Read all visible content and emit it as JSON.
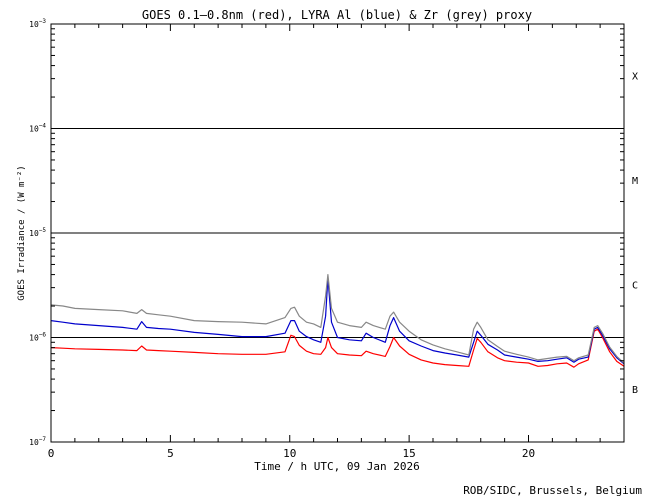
{
  "chart_data": {
    "type": "line",
    "title": "GOES 0.1—0.8nm (red), LYRA Al (blue) & Zr (grey) proxy",
    "xlabel": "Time / h UTC, 09 Jan 2026",
    "ylabel": "GOES Irradiance / (W m⁻²)",
    "xlim": [
      0,
      24
    ],
    "ylim": [
      1e-07,
      0.001
    ],
    "yscale": "log",
    "x_ticks": [
      0,
      5,
      10,
      15,
      20
    ],
    "y_ticks": [
      {
        "value": 1e-07,
        "base": "10",
        "exp": "−7"
      },
      {
        "value": 1e-06,
        "base": "10",
        "exp": "−6"
      },
      {
        "value": 1e-05,
        "base": "10",
        "exp": "−5"
      },
      {
        "value": 0.0001,
        "base": "10",
        "exp": "−4"
      },
      {
        "value": 0.001,
        "base": "10",
        "exp": "−3"
      }
    ],
    "flare_class_lines": [
      1e-06,
      1e-05,
      0.0001
    ],
    "flare_classes": [
      {
        "label": "X",
        "value": 0.00032
      },
      {
        "label": "M",
        "value": 3.2e-05
      },
      {
        "label": "C",
        "value": 3.2e-06
      },
      {
        "label": "B",
        "value": 3.2e-07
      }
    ],
    "footer": "ROB/SIDC, Brussels, Belgium",
    "series": [
      {
        "color": "#ff0000",
        "x": [
          0.0,
          0.5,
          1.0,
          2.0,
          3.0,
          3.6,
          3.8,
          4.0,
          4.5,
          5.0,
          6.0,
          7.0,
          8.0,
          9.0,
          9.8,
          10.05,
          10.2,
          10.4,
          10.7,
          11.0,
          11.3,
          11.5,
          11.6,
          11.75,
          12.0,
          12.5,
          13.0,
          13.2,
          13.5,
          14.0,
          14.2,
          14.35,
          14.6,
          15.0,
          15.5,
          16.0,
          16.5,
          17.0,
          17.5,
          17.7,
          17.85,
          18.0,
          18.3,
          18.7,
          19.0,
          19.5,
          20.0,
          20.4,
          20.8,
          21.2,
          21.6,
          21.9,
          22.1,
          22.5,
          22.75,
          22.9,
          23.1,
          23.4,
          23.7,
          24.0
        ],
        "y": [
          8e-07,
          7.9e-07,
          7.8e-07,
          7.7e-07,
          7.6e-07,
          7.5e-07,
          8.3e-07,
          7.6e-07,
          7.5e-07,
          7.4e-07,
          7.2e-07,
          7e-07,
          6.9e-07,
          6.9e-07,
          7.3e-07,
          1.05e-06,
          1.02e-06,
          8.4e-07,
          7.4e-07,
          7e-07,
          6.9e-07,
          8e-07,
          1e-06,
          8e-07,
          7e-07,
          6.8e-07,
          6.7e-07,
          7.4e-07,
          7e-07,
          6.6e-07,
          8.2e-07,
          1e-06,
          8.3e-07,
          6.9e-07,
          6.1e-07,
          5.7e-07,
          5.5e-07,
          5.4e-07,
          5.3e-07,
          7.6e-07,
          9.8e-07,
          9e-07,
          7.3e-07,
          6.4e-07,
          6e-07,
          5.8e-07,
          5.7e-07,
          5.3e-07,
          5.4e-07,
          5.6e-07,
          5.7e-07,
          5.2e-07,
          5.6e-07,
          6.1e-07,
          1.15e-06,
          1.2e-06,
          1e-06,
          7.3e-07,
          5.9e-07,
          5.3e-07
        ]
      },
      {
        "color": "#0000cc",
        "x": [
          0.0,
          0.5,
          1.0,
          2.0,
          3.0,
          3.6,
          3.8,
          4.0,
          4.5,
          5.0,
          6.0,
          7.0,
          8.0,
          9.0,
          9.8,
          10.05,
          10.2,
          10.4,
          10.7,
          11.0,
          11.3,
          11.5,
          11.6,
          11.75,
          12.0,
          12.5,
          13.0,
          13.2,
          13.5,
          14.0,
          14.2,
          14.35,
          14.6,
          15.0,
          15.5,
          16.0,
          16.5,
          17.0,
          17.5,
          17.7,
          17.85,
          18.0,
          18.3,
          18.7,
          19.0,
          19.5,
          20.0,
          20.4,
          20.8,
          21.2,
          21.6,
          21.9,
          22.1,
          22.5,
          22.75,
          22.9,
          23.1,
          23.4,
          23.7,
          24.0
        ],
        "y": [
          1.45e-06,
          1.4e-06,
          1.35e-06,
          1.3e-06,
          1.25e-06,
          1.2e-06,
          1.42e-06,
          1.25e-06,
          1.22e-06,
          1.2e-06,
          1.12e-06,
          1.07e-06,
          1.02e-06,
          1.02e-06,
          1.1e-06,
          1.45e-06,
          1.45e-06,
          1.15e-06,
          1.02e-06,
          9.5e-07,
          9e-07,
          1.6e-06,
          3.7e-06,
          1.4e-06,
          1e-06,
          9.5e-07,
          9.3e-07,
          1.1e-06,
          1e-06,
          9e-07,
          1.3e-06,
          1.55e-06,
          1.15e-06,
          9.3e-07,
          8.3e-07,
          7.5e-07,
          7.1e-07,
          6.8e-07,
          6.5e-07,
          9e-07,
          1.15e-06,
          1.05e-06,
          8.6e-07,
          7.6e-07,
          6.8e-07,
          6.5e-07,
          6.2e-07,
          5.9e-07,
          6e-07,
          6.2e-07,
          6.4e-07,
          5.8e-07,
          6.2e-07,
          6.5e-07,
          1.2e-06,
          1.25e-06,
          1.05e-06,
          7.8e-07,
          6.4e-07,
          5.6e-07
        ]
      },
      {
        "color": "#888888",
        "x": [
          0.0,
          0.5,
          1.0,
          2.0,
          3.0,
          3.6,
          3.8,
          4.0,
          4.5,
          5.0,
          6.0,
          7.0,
          8.0,
          9.0,
          9.8,
          10.05,
          10.2,
          10.4,
          10.7,
          11.0,
          11.3,
          11.5,
          11.6,
          11.75,
          12.0,
          12.5,
          13.0,
          13.2,
          13.5,
          14.0,
          14.2,
          14.35,
          14.6,
          15.0,
          15.5,
          16.0,
          16.5,
          17.0,
          17.5,
          17.7,
          17.85,
          18.0,
          18.3,
          18.7,
          19.0,
          19.5,
          20.0,
          20.4,
          20.8,
          21.2,
          21.6,
          21.9,
          22.1,
          22.5,
          22.75,
          22.9,
          23.1,
          23.4,
          23.7,
          24.0
        ],
        "y": [
          2.05e-06,
          2e-06,
          1.9e-06,
          1.85e-06,
          1.8e-06,
          1.7e-06,
          1.85e-06,
          1.7e-06,
          1.65e-06,
          1.6e-06,
          1.45e-06,
          1.42e-06,
          1.4e-06,
          1.35e-06,
          1.55e-06,
          1.9e-06,
          1.95e-06,
          1.6e-06,
          1.4e-06,
          1.35e-06,
          1.25e-06,
          2.5e-06,
          4e-06,
          1.9e-06,
          1.4e-06,
          1.3e-06,
          1.25e-06,
          1.4e-06,
          1.3e-06,
          1.2e-06,
          1.6e-06,
          1.75e-06,
          1.4e-06,
          1.15e-06,
          9.5e-07,
          8.5e-07,
          7.8e-07,
          7.3e-07,
          6.8e-07,
          1.2e-06,
          1.4e-06,
          1.25e-06,
          9.5e-07,
          8.2e-07,
          7.4e-07,
          6.9e-07,
          6.5e-07,
          6.1e-07,
          6.3e-07,
          6.5e-07,
          6.6e-07,
          6e-07,
          6.4e-07,
          6.8e-07,
          1.25e-06,
          1.3e-06,
          1.1e-06,
          8.1e-07,
          6.6e-07,
          5.7e-07
        ]
      }
    ]
  }
}
